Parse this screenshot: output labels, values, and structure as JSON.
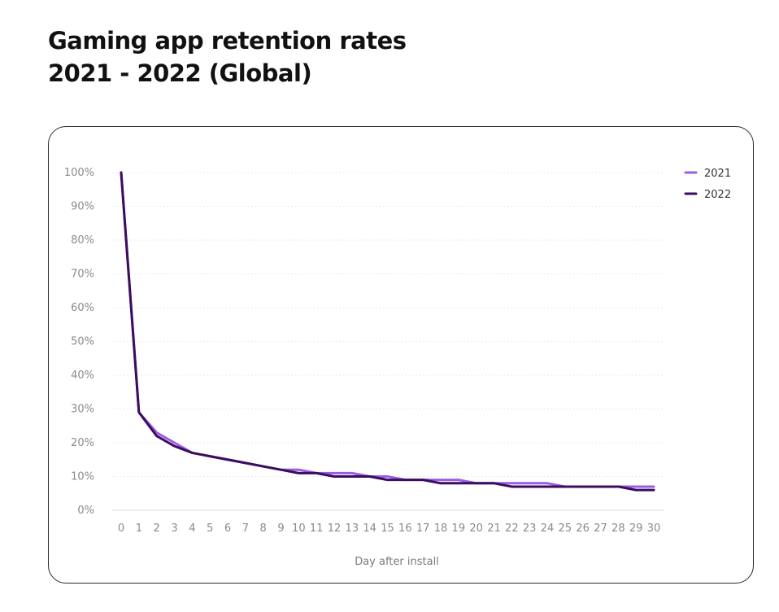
{
  "header": {
    "title_line1": "Gaming app retention rates",
    "title_line2": "2021 - 2022 (Global)"
  },
  "chart_data": {
    "type": "line",
    "xlabel": "Day after install",
    "ylabel": "",
    "x": [
      0,
      1,
      2,
      3,
      4,
      5,
      6,
      7,
      8,
      9,
      10,
      11,
      12,
      13,
      14,
      15,
      16,
      17,
      18,
      19,
      20,
      21,
      22,
      23,
      24,
      25,
      26,
      27,
      28,
      29,
      30
    ],
    "yticks": [
      "0%",
      "10%",
      "20%",
      "30%",
      "40%",
      "50%",
      "60%",
      "70%",
      "80%",
      "90%",
      "100%"
    ],
    "ylim": [
      0,
      100
    ],
    "grid": true,
    "legend_position": "top-right",
    "series": [
      {
        "name": "2021",
        "color": "#9b5de5",
        "values": [
          100,
          29,
          23,
          20,
          17,
          16,
          15,
          14,
          13,
          12,
          12,
          11,
          11,
          11,
          10,
          10,
          9,
          9,
          9,
          9,
          8,
          8,
          8,
          8,
          8,
          7,
          7,
          7,
          7,
          7,
          7
        ]
      },
      {
        "name": "2022",
        "color": "#3a0d5e",
        "values": [
          100,
          29,
          22,
          19,
          17,
          16,
          15,
          14,
          13,
          12,
          11,
          11,
          10,
          10,
          10,
          9,
          9,
          9,
          8,
          8,
          8,
          8,
          7,
          7,
          7,
          7,
          7,
          7,
          7,
          6,
          6
        ]
      }
    ]
  }
}
